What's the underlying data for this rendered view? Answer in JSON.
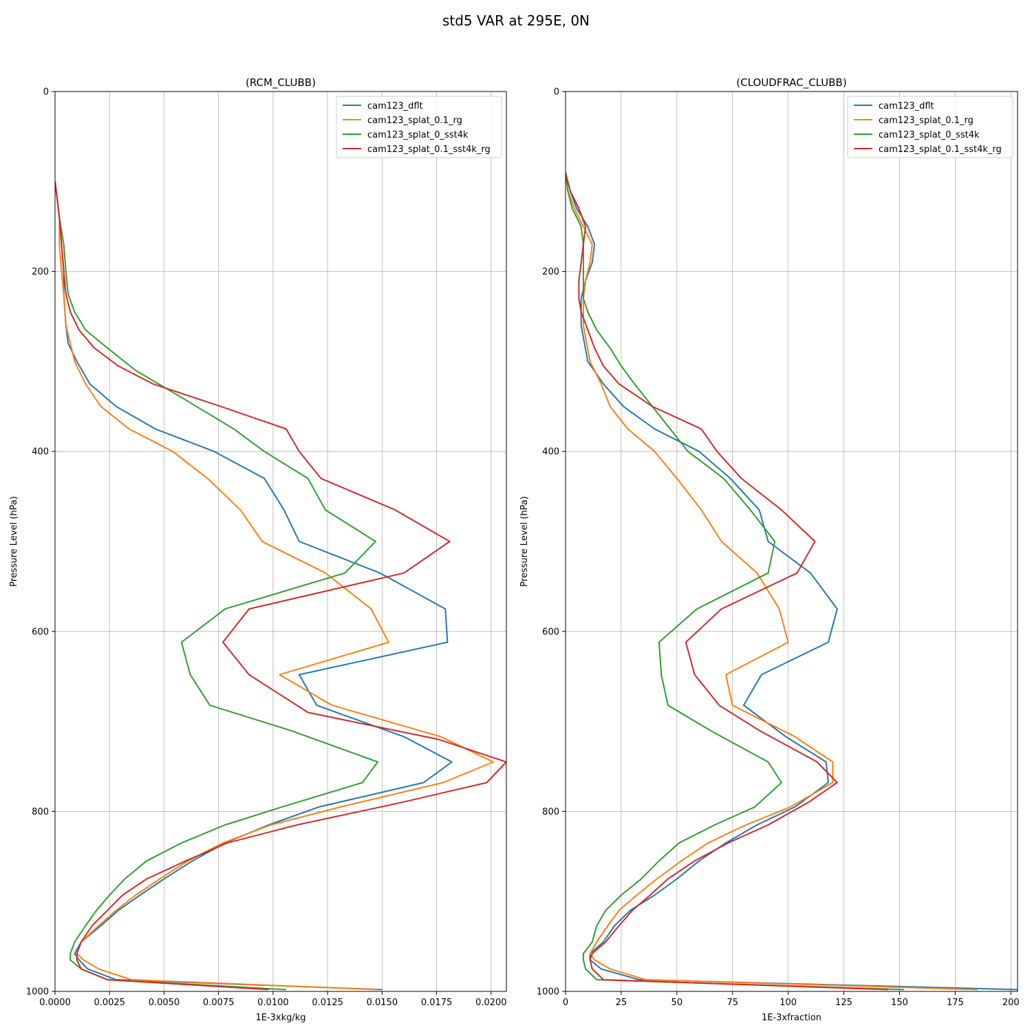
{
  "figure_title": "std5 VAR at 295E, 0N",
  "colors": {
    "s0": "#1f77b4",
    "s1": "#ff7f0e",
    "s2": "#2ca02c",
    "s3": "#d62728",
    "grid": "#b0b0b0"
  },
  "chart_data": [
    {
      "type": "line",
      "title": "(RCM_CLUBB)",
      "xlabel": "1E-3xkg/kg",
      "ylabel": "Pressure Level (hPa)",
      "xlim": [
        0,
        0.0207
      ],
      "ylim": [
        1000,
        0
      ],
      "xticks": [
        0,
        0.0025,
        0.005,
        0.0075,
        0.01,
        0.0125,
        0.015,
        0.0175,
        0.02
      ],
      "xtick_labels": [
        "0.0000",
        "0.0025",
        "0.0050",
        "0.0075",
        "0.0100",
        "0.0125",
        "0.0150",
        "0.0175",
        "0.0200"
      ],
      "yticks": [
        0,
        200,
        400,
        600,
        800,
        1000
      ],
      "ytick_labels": [
        "0",
        "200",
        "400",
        "600",
        "800",
        "1000"
      ],
      "grid": true,
      "legend": "top-right",
      "series": [
        {
          "name": "cam123_dflt",
          "color": "#1f77b4",
          "y": [
            100,
            120,
            140,
            170,
            200,
            225,
            260,
            280,
            300,
            325,
            350,
            375,
            400,
            430,
            465,
            500,
            535,
            575,
            612,
            648,
            682,
            717,
            745,
            768,
            795,
            815,
            835,
            855,
            875,
            893,
            910,
            927,
            945,
            958,
            965,
            975,
            987,
            998
          ],
          "x": [
            0,
            0.0001,
            0.0002,
            0.0003,
            0.0004,
            0.0004,
            0.0005,
            0.0006,
            0.001,
            0.0016,
            0.0028,
            0.0046,
            0.0073,
            0.0096,
            0.0105,
            0.0112,
            0.0149,
            0.0179,
            0.018,
            0.0112,
            0.012,
            0.016,
            0.0182,
            0.0169,
            0.0121,
            0.0098,
            0.0078,
            0.0063,
            0.005,
            0.0039,
            0.0029,
            0.0021,
            0.0012,
            0.0009,
            0.0011,
            0.0015,
            0.0028,
            0.015
          ]
        },
        {
          "name": "cam123_splat_0.1_rg",
          "color": "#ff7f0e",
          "y": [
            100,
            120,
            140,
            170,
            200,
            225,
            260,
            280,
            300,
            325,
            350,
            375,
            400,
            430,
            465,
            500,
            535,
            575,
            612,
            648,
            682,
            717,
            745,
            768,
            795,
            815,
            835,
            855,
            875,
            893,
            910,
            927,
            945,
            958,
            965,
            975,
            987,
            998
          ],
          "x": [
            0,
            0.0001,
            0.0002,
            0.0002,
            0.0003,
            0.0004,
            0.0005,
            0.0007,
            0.0009,
            0.0014,
            0.0021,
            0.0034,
            0.0054,
            0.007,
            0.0085,
            0.0095,
            0.0124,
            0.0145,
            0.0153,
            0.0103,
            0.0127,
            0.0177,
            0.0201,
            0.0178,
            0.0131,
            0.0099,
            0.0077,
            0.0061,
            0.0048,
            0.0037,
            0.0028,
            0.002,
            0.0012,
            0.001,
            0.0013,
            0.002,
            0.0035,
            0.0148
          ]
        },
        {
          "name": "cam123_splat_0_sst4k",
          "color": "#2ca02c",
          "y": [
            100,
            120,
            140,
            170,
            200,
            225,
            245,
            265,
            285,
            310,
            340,
            375,
            400,
            430,
            465,
            500,
            535,
            575,
            612,
            648,
            682,
            710,
            745,
            768,
            795,
            815,
            835,
            855,
            875,
            893,
            910,
            927,
            945,
            958,
            965,
            975,
            987,
            998
          ],
          "x": [
            0,
            0.0001,
            0.0002,
            0.0004,
            0.0005,
            0.0006,
            0.0009,
            0.0014,
            0.0024,
            0.0037,
            0.0058,
            0.0082,
            0.0096,
            0.0116,
            0.0124,
            0.0147,
            0.0133,
            0.0078,
            0.0058,
            0.0062,
            0.0071,
            0.0108,
            0.0148,
            0.0141,
            0.0104,
            0.0078,
            0.0058,
            0.0042,
            0.0032,
            0.0025,
            0.0019,
            0.0014,
            0.0009,
            0.0007,
            0.0007,
            0.0012,
            0.0024,
            0.0106
          ]
        },
        {
          "name": "cam123_splat_0.1_sst4k_rg",
          "color": "#d62728",
          "y": [
            100,
            120,
            140,
            170,
            200,
            225,
            245,
            265,
            285,
            305,
            325,
            350,
            375,
            400,
            430,
            465,
            500,
            535,
            575,
            612,
            648,
            690,
            720,
            745,
            768,
            790,
            815,
            835,
            855,
            875,
            893,
            910,
            927,
            945,
            958,
            965,
            975,
            987,
            998
          ],
          "x": [
            0,
            0.0001,
            0.0002,
            0.0003,
            0.0004,
            0.0005,
            0.0007,
            0.0011,
            0.0018,
            0.0029,
            0.0045,
            0.0076,
            0.0106,
            0.0112,
            0.0122,
            0.0156,
            0.0181,
            0.016,
            0.0089,
            0.0077,
            0.0089,
            0.0116,
            0.0176,
            0.0207,
            0.0198,
            0.0159,
            0.0111,
            0.0079,
            0.006,
            0.0042,
            0.0031,
            0.0024,
            0.0017,
            0.0012,
            0.001,
            0.001,
            0.0012,
            0.0024,
            0.0098
          ]
        }
      ]
    },
    {
      "type": "line",
      "title": "(CLOUDFRAC_CLUBB)",
      "xlabel": "1E-3xfraction",
      "ylabel": "Pressure Level (hPa)",
      "xlim": [
        0,
        203
      ],
      "ylim": [
        1000,
        0
      ],
      "xticks": [
        0,
        25,
        50,
        75,
        100,
        125,
        150,
        175,
        200
      ],
      "xtick_labels": [
        "0",
        "25",
        "50",
        "75",
        "100",
        "125",
        "150",
        "175",
        "200"
      ],
      "yticks": [
        0,
        200,
        400,
        600,
        800,
        1000
      ],
      "ytick_labels": [
        "0",
        "200",
        "400",
        "600",
        "800",
        "1000"
      ],
      "grid": true,
      "legend": "top-right",
      "series": [
        {
          "name": "cam123_dflt",
          "color": "#1f77b4",
          "y": [
            90,
            110,
            130,
            150,
            170,
            190,
            210,
            230,
            260,
            300,
            325,
            350,
            375,
            400,
            430,
            465,
            500,
            535,
            575,
            612,
            648,
            682,
            717,
            745,
            768,
            795,
            815,
            835,
            855,
            875,
            893,
            910,
            927,
            945,
            958,
            965,
            975,
            987,
            998
          ],
          "x": [
            0,
            2,
            5,
            10,
            13,
            12,
            9,
            7,
            7,
            10,
            17,
            26,
            40,
            60,
            74,
            87,
            91,
            110,
            122,
            118,
            88,
            80,
            99,
            117,
            118,
            103,
            86,
            72,
            60,
            50,
            40,
            29,
            22,
            17,
            11,
            11,
            16,
            33,
            203
          ]
        },
        {
          "name": "cam123_splat_0.1_rg",
          "color": "#ff7f0e",
          "y": [
            90,
            110,
            130,
            150,
            170,
            190,
            210,
            230,
            260,
            300,
            325,
            350,
            375,
            400,
            430,
            465,
            500,
            535,
            575,
            612,
            648,
            682,
            717,
            745,
            768,
            795,
            815,
            835,
            855,
            875,
            893,
            910,
            927,
            945,
            958,
            965,
            975,
            987,
            998
          ],
          "x": [
            0,
            1,
            4,
            8,
            12,
            11,
            9,
            8,
            8,
            11,
            16,
            20,
            28,
            40,
            50,
            61,
            70,
            86,
            96,
            100,
            72,
            75,
            103,
            120,
            120,
            101,
            81,
            64,
            52,
            41,
            32,
            24,
            19,
            14,
            11,
            13,
            20,
            36,
            185
          ]
        },
        {
          "name": "cam123_splat_0_sst4k",
          "color": "#2ca02c",
          "y": [
            90,
            110,
            130,
            150,
            170,
            190,
            210,
            230,
            245,
            265,
            285,
            305,
            325,
            350,
            375,
            400,
            430,
            465,
            500,
            535,
            575,
            612,
            648,
            682,
            710,
            745,
            768,
            795,
            815,
            835,
            855,
            875,
            893,
            910,
            927,
            945,
            958,
            965,
            975,
            987,
            998
          ],
          "x": [
            0,
            1,
            3,
            7,
            8,
            8,
            8,
            8,
            10,
            14,
            20,
            25,
            31,
            39,
            47,
            55,
            71,
            83,
            94,
            91,
            59,
            42,
            43,
            46,
            65,
            91,
            97,
            85,
            67,
            51,
            42,
            34,
            25,
            18,
            14,
            12,
            8,
            8,
            9,
            14,
            152
          ]
        },
        {
          "name": "cam123_splat_0.1_sst4k_rg",
          "color": "#d62728",
          "y": [
            90,
            110,
            130,
            150,
            170,
            190,
            210,
            230,
            245,
            265,
            285,
            305,
            325,
            350,
            375,
            400,
            430,
            465,
            500,
            535,
            575,
            612,
            648,
            682,
            710,
            745,
            768,
            790,
            815,
            835,
            855,
            875,
            893,
            910,
            927,
            945,
            958,
            965,
            975,
            987,
            998
          ],
          "x": [
            0,
            2,
            6,
            9,
            8,
            7,
            6,
            6,
            7,
            10,
            13,
            17,
            24,
            39,
            61,
            68,
            79,
            97,
            112,
            104,
            70,
            54,
            58,
            69,
            87,
            113,
            122,
            109,
            91,
            73,
            58,
            46,
            38,
            30,
            24,
            18,
            12,
            11,
            12,
            17,
            145
          ]
        }
      ]
    }
  ]
}
